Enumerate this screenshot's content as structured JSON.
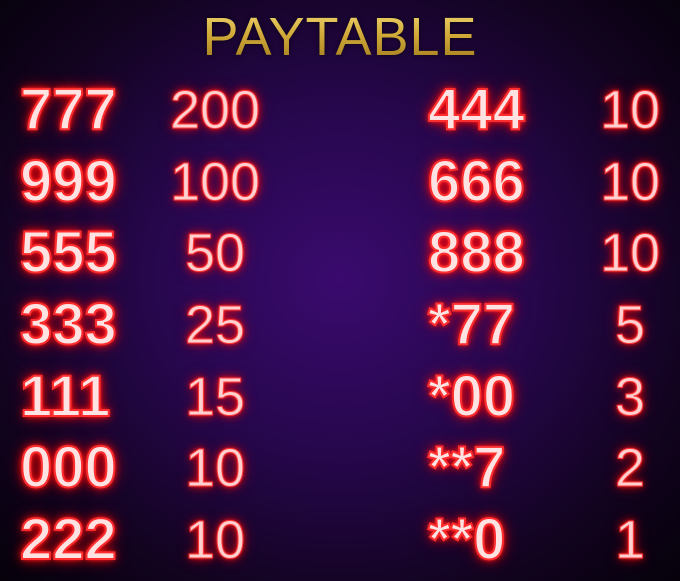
{
  "title": "PAYTABLE",
  "colors": {
    "title_gold": "#d6b23e",
    "neon_red": "#ff2d2d",
    "background": "#26074c"
  },
  "left_column": [
    {
      "combo": "777",
      "payout": "200"
    },
    {
      "combo": "999",
      "payout": "100"
    },
    {
      "combo": "555",
      "payout": "50"
    },
    {
      "combo": "333",
      "payout": "25"
    },
    {
      "combo": "111",
      "payout": "15"
    },
    {
      "combo": "000",
      "payout": "10"
    },
    {
      "combo": "222",
      "payout": "10"
    }
  ],
  "right_column": [
    {
      "combo": "444",
      "payout": "10"
    },
    {
      "combo": "666",
      "payout": "10"
    },
    {
      "combo": "888",
      "payout": "10"
    },
    {
      "combo": "*77",
      "payout": "5"
    },
    {
      "combo": "*00",
      "payout": "3"
    },
    {
      "combo": "**7",
      "payout": "2"
    },
    {
      "combo": "**0",
      "payout": "1"
    }
  ]
}
